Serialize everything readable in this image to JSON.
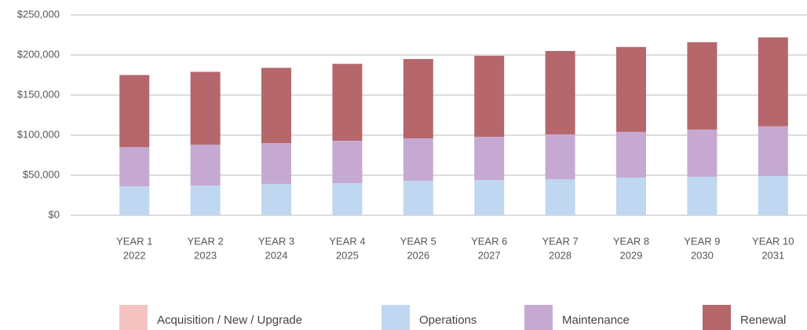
{
  "chart_data": {
    "type": "bar",
    "stacked": true,
    "categories": [
      [
        "YEAR 1",
        "2022"
      ],
      [
        "YEAR 2",
        "2023"
      ],
      [
        "YEAR 3",
        "2024"
      ],
      [
        "YEAR 4",
        "2025"
      ],
      [
        "YEAR 5",
        "2026"
      ],
      [
        "YEAR 6",
        "2027"
      ],
      [
        "YEAR 7",
        "2028"
      ],
      [
        "YEAR 8",
        "2029"
      ],
      [
        "YEAR 9",
        "2030"
      ],
      [
        "YEAR 10",
        "2031"
      ]
    ],
    "series": [
      {
        "name": "Acquisition / New / Upgrade",
        "color": "#f4c2c0",
        "values": [
          0,
          0,
          0,
          0,
          0,
          0,
          0,
          0,
          0,
          0
        ]
      },
      {
        "name": "Operations",
        "color": "#bfd7f1",
        "values": [
          36000,
          37000,
          39000,
          40000,
          43000,
          44000,
          45000,
          47000,
          48000,
          49000
        ]
      },
      {
        "name": "Maintenance",
        "color": "#c5a9d3",
        "values": [
          49000,
          51000,
          51000,
          53000,
          53000,
          54000,
          56000,
          57000,
          59000,
          62000
        ]
      },
      {
        "name": "Renewal",
        "color": "#b5676b",
        "values": [
          90000,
          91000,
          94000,
          96000,
          99000,
          101000,
          104000,
          106000,
          109000,
          111000
        ]
      }
    ],
    "ylim": [
      0,
      250000
    ],
    "yticks": [
      {
        "value": 0,
        "label": "$0"
      },
      {
        "value": 50000,
        "label": "$50,000"
      },
      {
        "value": 100000,
        "label": "$100,000"
      },
      {
        "value": 150000,
        "label": "$150,000"
      },
      {
        "value": 200000,
        "label": "$200,000"
      },
      {
        "value": 250000,
        "label": "$250,000"
      }
    ],
    "grid": true
  }
}
